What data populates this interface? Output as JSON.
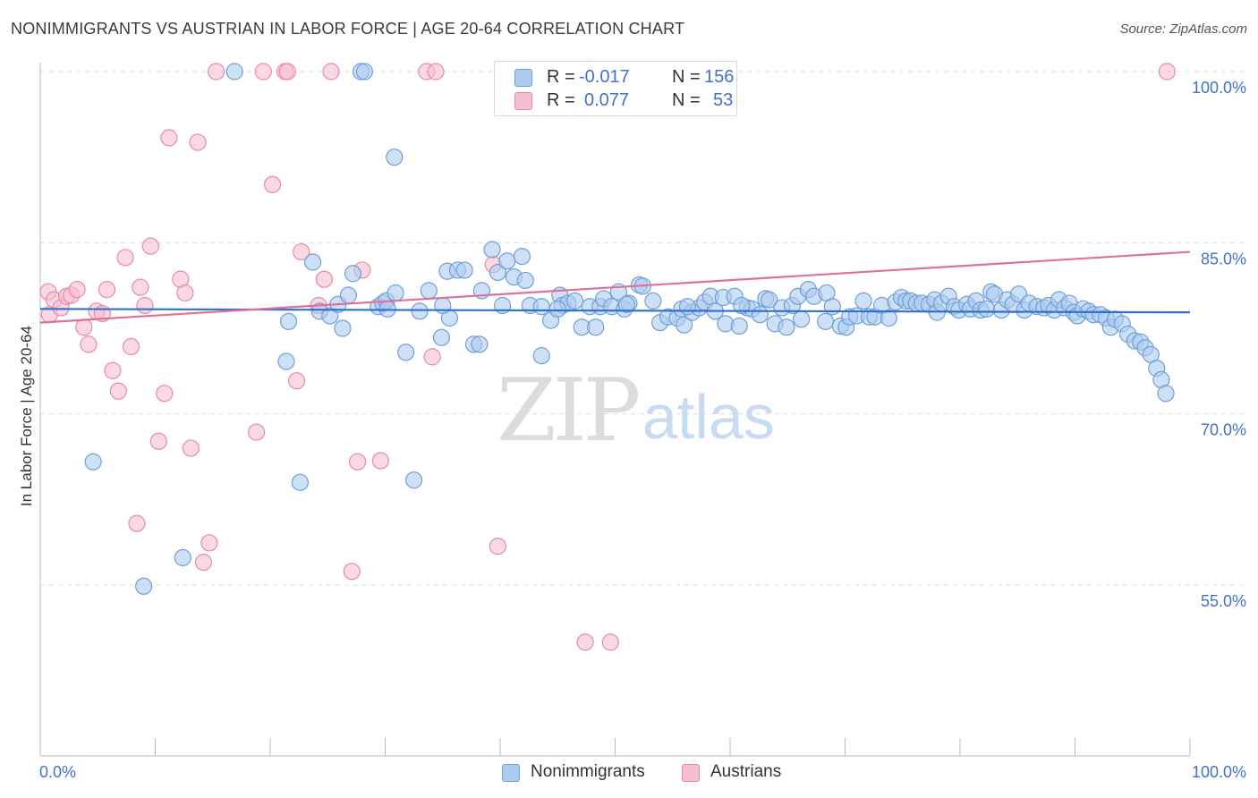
{
  "header": {
    "title": "NONIMMIGRANTS VS AUSTRIAN IN LABOR FORCE | AGE 20-64 CORRELATION CHART",
    "source": "Source: ZipAtlas.com"
  },
  "watermark": {
    "zip": "ZIP",
    "atlas": "atlas"
  },
  "legend": {
    "rows": [
      {
        "r_label": "R =",
        "r_value": "-0.017",
        "n_label": "N =",
        "n_value": "156"
      },
      {
        "r_label": "R =",
        "r_value": "0.077",
        "n_label": "N =",
        "n_value": "53"
      }
    ]
  },
  "bottom_legend": {
    "items": [
      "Nonimmigrants",
      "Austrians"
    ]
  },
  "colors": {
    "blue_fill": "#aecbf0",
    "blue_stroke": "#6f9fd8",
    "blue_line": "#2f6fcf",
    "pink_fill": "#f6bfd0",
    "pink_stroke": "#e889a8",
    "pink_line": "#e0709a",
    "tick_label": "#3f73c9",
    "grid": "#dcdcdc"
  },
  "chart_data": {
    "type": "scatter",
    "title": "NONIMMIGRANTS VS AUSTRIAN IN LABOR FORCE | AGE 20-64 CORRELATION CHART",
    "xlabel": "",
    "ylabel": "In Labor Force | Age 20-64",
    "xlim": [
      0,
      100
    ],
    "ylim": [
      40,
      102
    ],
    "x_tick_labels": [
      "0.0%",
      "100.0%"
    ],
    "y_ticks": [
      55,
      70,
      85,
      100
    ],
    "y_tick_labels": [
      "55.0%",
      "70.0%",
      "85.0%",
      "100.0%"
    ],
    "grid": true,
    "legend_position": "top-center",
    "series": [
      {
        "name": "Nonimmigrants",
        "R": -0.017,
        "N": 156,
        "trend": [
          [
            0,
            79.2
          ],
          [
            100,
            78.9
          ]
        ],
        "points": [
          [
            4.6,
            65.8
          ],
          [
            9,
            54.9
          ],
          [
            12.4,
            57.4
          ],
          [
            16.9,
            100.0
          ],
          [
            21.4,
            74.6
          ],
          [
            21.6,
            78.1
          ],
          [
            22.6,
            64.0
          ],
          [
            23.7,
            83.3
          ],
          [
            24.3,
            79.0
          ],
          [
            25.2,
            78.6
          ],
          [
            25.9,
            79.6
          ],
          [
            26.3,
            77.5
          ],
          [
            26.8,
            80.4
          ],
          [
            27.2,
            82.3
          ],
          [
            27.9,
            100.0
          ],
          [
            28.2,
            100.0
          ],
          [
            29.4,
            79.4
          ],
          [
            29.8,
            79.7
          ],
          [
            30.1,
            79.9
          ],
          [
            30.9,
            80.6
          ],
          [
            30.8,
            92.5
          ],
          [
            31.8,
            75.4
          ],
          [
            32.5,
            64.2
          ],
          [
            33.0,
            79.0
          ],
          [
            33.8,
            80.8
          ],
          [
            34.9,
            76.7
          ],
          [
            35.4,
            82.5
          ],
          [
            35.6,
            78.4
          ],
          [
            36.3,
            82.6
          ],
          [
            36.9,
            82.6
          ],
          [
            37.7,
            76.1
          ],
          [
            38.2,
            76.1
          ],
          [
            38.4,
            80.8
          ],
          [
            39.3,
            84.4
          ],
          [
            39.8,
            82.4
          ],
          [
            40.2,
            79.5
          ],
          [
            40.6,
            83.4
          ],
          [
            41.2,
            82.0
          ],
          [
            41.9,
            83.8
          ],
          [
            42.2,
            81.7
          ],
          [
            42.6,
            79.5
          ],
          [
            43.6,
            75.1
          ],
          [
            43.6,
            79.4
          ],
          [
            44.4,
            78.2
          ],
          [
            45.2,
            80.4
          ],
          [
            45.4,
            79.5
          ],
          [
            45.9,
            79.7
          ],
          [
            46.5,
            79.9
          ],
          [
            47.1,
            77.6
          ],
          [
            47.8,
            79.4
          ],
          [
            48.3,
            77.6
          ],
          [
            48.7,
            79.4
          ],
          [
            49.0,
            80.1
          ],
          [
            49.7,
            79.4
          ],
          [
            50.3,
            80.7
          ],
          [
            50.8,
            79.2
          ],
          [
            51.2,
            79.7
          ],
          [
            52.1,
            81.3
          ],
          [
            52.4,
            81.2
          ],
          [
            53.3,
            79.9
          ],
          [
            53.9,
            78.0
          ],
          [
            54.6,
            78.5
          ],
          [
            55.4,
            78.4
          ],
          [
            55.8,
            79.2
          ],
          [
            56.0,
            77.8
          ],
          [
            56.7,
            78.9
          ],
          [
            57.3,
            79.3
          ],
          [
            57.8,
            79.8
          ],
          [
            58.3,
            80.3
          ],
          [
            58.7,
            79.0
          ],
          [
            59.4,
            80.2
          ],
          [
            59.6,
            77.9
          ],
          [
            60.4,
            80.3
          ],
          [
            60.8,
            77.7
          ],
          [
            61.5,
            79.3
          ],
          [
            61.9,
            79.2
          ],
          [
            62.6,
            78.7
          ],
          [
            63.1,
            80.1
          ],
          [
            63.4,
            80.0
          ],
          [
            63.9,
            77.9
          ],
          [
            64.5,
            79.3
          ],
          [
            64.9,
            77.6
          ],
          [
            65.4,
            79.5
          ],
          [
            65.9,
            80.3
          ],
          [
            66.2,
            78.3
          ],
          [
            66.8,
            80.9
          ],
          [
            67.3,
            80.3
          ],
          [
            68.3,
            78.1
          ],
          [
            68.4,
            80.6
          ],
          [
            68.9,
            79.4
          ],
          [
            69.6,
            77.7
          ],
          [
            70.1,
            77.6
          ],
          [
            70.4,
            78.5
          ],
          [
            71.0,
            78.6
          ],
          [
            71.6,
            79.9
          ],
          [
            72.1,
            78.5
          ],
          [
            72.6,
            78.5
          ],
          [
            73.2,
            79.5
          ],
          [
            73.8,
            78.4
          ],
          [
            74.4,
            79.8
          ],
          [
            74.9,
            80.2
          ],
          [
            75.3,
            79.9
          ],
          [
            75.7,
            79.9
          ],
          [
            76.2,
            79.7
          ],
          [
            76.7,
            79.7
          ],
          [
            77.3,
            79.6
          ],
          [
            77.8,
            80.0
          ],
          [
            78.0,
            78.9
          ],
          [
            78.4,
            79.7
          ],
          [
            79.0,
            80.3
          ],
          [
            79.5,
            79.4
          ],
          [
            79.9,
            79.1
          ],
          [
            80.6,
            79.6
          ],
          [
            80.9,
            79.2
          ],
          [
            81.4,
            79.9
          ],
          [
            81.8,
            79.1
          ],
          [
            82.3,
            79.2
          ],
          [
            82.7,
            80.7
          ],
          [
            83.0,
            80.5
          ],
          [
            83.6,
            79.1
          ],
          [
            84.1,
            80.0
          ],
          [
            84.6,
            79.6
          ],
          [
            85.1,
            80.5
          ],
          [
            85.6,
            79.1
          ],
          [
            86.0,
            79.7
          ],
          [
            86.7,
            79.4
          ],
          [
            87.3,
            79.3
          ],
          [
            87.7,
            79.5
          ],
          [
            88.2,
            79.1
          ],
          [
            88.6,
            80.0
          ],
          [
            89.1,
            79.3
          ],
          [
            89.5,
            79.7
          ],
          [
            89.9,
            78.9
          ],
          [
            90.2,
            78.6
          ],
          [
            90.7,
            79.2
          ],
          [
            91.2,
            79.0
          ],
          [
            91.6,
            78.7
          ],
          [
            92.2,
            78.7
          ],
          [
            92.7,
            78.4
          ],
          [
            93.1,
            77.6
          ],
          [
            93.5,
            78.3
          ],
          [
            94.1,
            77.9
          ],
          [
            94.6,
            77.0
          ],
          [
            95.2,
            76.4
          ],
          [
            95.7,
            76.3
          ],
          [
            96.1,
            75.8
          ],
          [
            96.6,
            75.2
          ],
          [
            97.1,
            74.0
          ],
          [
            97.5,
            73.0
          ],
          [
            97.9,
            71.8
          ],
          [
            30.2,
            79.2
          ],
          [
            35.0,
            79.5
          ],
          [
            45.0,
            79.2
          ],
          [
            51.0,
            79.6
          ],
          [
            56.3,
            79.4
          ],
          [
            61.0,
            79.5
          ]
        ]
      },
      {
        "name": "Austrians",
        "R": 0.077,
        "N": 53,
        "trend": [
          [
            0,
            78.0
          ],
          [
            100,
            84.2
          ]
        ],
        "points": [
          [
            0.7,
            80.7
          ],
          [
            0.8,
            78.7
          ],
          [
            1.2,
            80.0
          ],
          [
            1.8,
            79.3
          ],
          [
            2.3,
            80.3
          ],
          [
            2.7,
            80.4
          ],
          [
            3.2,
            80.9
          ],
          [
            3.8,
            77.6
          ],
          [
            4.2,
            76.1
          ],
          [
            4.9,
            79.0
          ],
          [
            5.4,
            78.8
          ],
          [
            5.8,
            80.9
          ],
          [
            6.3,
            73.8
          ],
          [
            6.8,
            72.0
          ],
          [
            7.4,
            83.7
          ],
          [
            7.9,
            75.9
          ],
          [
            8.4,
            60.4
          ],
          [
            8.7,
            81.1
          ],
          [
            9.1,
            79.5
          ],
          [
            9.6,
            84.7
          ],
          [
            10.3,
            67.6
          ],
          [
            10.8,
            71.8
          ],
          [
            11.2,
            94.2
          ],
          [
            12.2,
            81.8
          ],
          [
            12.6,
            80.6
          ],
          [
            13.1,
            67.0
          ],
          [
            13.7,
            93.8
          ],
          [
            14.2,
            57.0
          ],
          [
            14.7,
            58.7
          ],
          [
            15.3,
            100.0
          ],
          [
            18.8,
            68.4
          ],
          [
            19.4,
            100.0
          ],
          [
            20.2,
            90.1
          ],
          [
            21.3,
            100.0
          ],
          [
            21.5,
            100.0
          ],
          [
            22.3,
            72.9
          ],
          [
            22.7,
            84.2
          ],
          [
            24.2,
            79.5
          ],
          [
            24.7,
            81.8
          ],
          [
            25.3,
            100.0
          ],
          [
            27.1,
            56.2
          ],
          [
            27.6,
            65.8
          ],
          [
            28.0,
            82.6
          ],
          [
            29.6,
            65.9
          ],
          [
            33.6,
            100.0
          ],
          [
            34.1,
            75.0
          ],
          [
            34.4,
            100.0
          ],
          [
            39.4,
            83.1
          ],
          [
            39.8,
            58.4
          ],
          [
            46.9,
            100.0
          ],
          [
            47.4,
            50.0
          ],
          [
            49.6,
            50.0
          ],
          [
            98.0,
            100.0
          ]
        ]
      }
    ]
  }
}
